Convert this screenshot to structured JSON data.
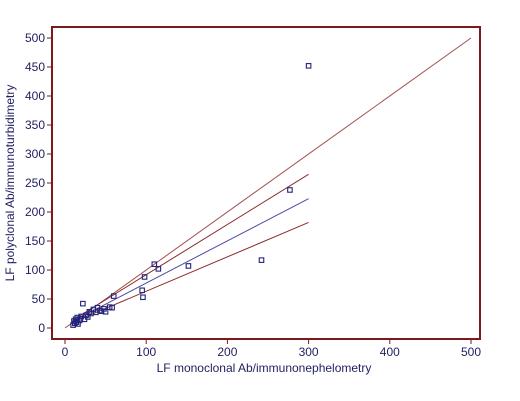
{
  "chart_data": {
    "type": "scatter",
    "xlabel": "LF monoclonal Ab/immunonephelometry",
    "ylabel": "LF polyclonal Ab/immunoturbidimetry",
    "xlim": [
      0,
      500
    ],
    "ylim": [
      0,
      500
    ],
    "xticks": [
      0,
      100,
      200,
      300,
      400,
      500
    ],
    "yticks": [
      0,
      50,
      100,
      150,
      200,
      250,
      300,
      350,
      400,
      450,
      500
    ],
    "grid": false,
    "colors": {
      "frame": "#7a1a1a",
      "points": "#23237a",
      "regression": "#4a4aa8",
      "confidence": "#8b2a2a",
      "identity": "#a05050"
    },
    "points": [
      {
        "x": 10,
        "y": 5
      },
      {
        "x": 11,
        "y": 12
      },
      {
        "x": 12,
        "y": 8
      },
      {
        "x": 13,
        "y": 15
      },
      {
        "x": 14,
        "y": 10
      },
      {
        "x": 15,
        "y": 18
      },
      {
        "x": 16,
        "y": 7
      },
      {
        "x": 18,
        "y": 13
      },
      {
        "x": 19,
        "y": 16
      },
      {
        "x": 20,
        "y": 20
      },
      {
        "x": 22,
        "y": 42
      },
      {
        "x": 24,
        "y": 15
      },
      {
        "x": 26,
        "y": 22
      },
      {
        "x": 28,
        "y": 19
      },
      {
        "x": 30,
        "y": 28
      },
      {
        "x": 32,
        "y": 25
      },
      {
        "x": 35,
        "y": 32
      },
      {
        "x": 38,
        "y": 27
      },
      {
        "x": 40,
        "y": 35
      },
      {
        "x": 43,
        "y": 30
      },
      {
        "x": 45,
        "y": 29
      },
      {
        "x": 48,
        "y": 33
      },
      {
        "x": 50,
        "y": 28
      },
      {
        "x": 55,
        "y": 36
      },
      {
        "x": 58,
        "y": 35
      },
      {
        "x": 60,
        "y": 55
      },
      {
        "x": 95,
        "y": 65
      },
      {
        "x": 96,
        "y": 53
      },
      {
        "x": 98,
        "y": 88
      },
      {
        "x": 110,
        "y": 110
      },
      {
        "x": 115,
        "y": 102
      },
      {
        "x": 152,
        "y": 107
      },
      {
        "x": 242,
        "y": 117
      },
      {
        "x": 277,
        "y": 238
      },
      {
        "x": 300,
        "y": 452
      }
    ],
    "identity_line": {
      "x": [
        0,
        500
      ],
      "y": [
        0,
        500
      ]
    },
    "regression_line": {
      "x": [
        10,
        300
      ],
      "y": [
        12,
        223
      ]
    },
    "upper_bound": {
      "x": [
        10,
        300
      ],
      "y": [
        14,
        265
      ]
    },
    "lower_bound": {
      "x": [
        10,
        300
      ],
      "y": [
        10,
        182
      ]
    }
  }
}
